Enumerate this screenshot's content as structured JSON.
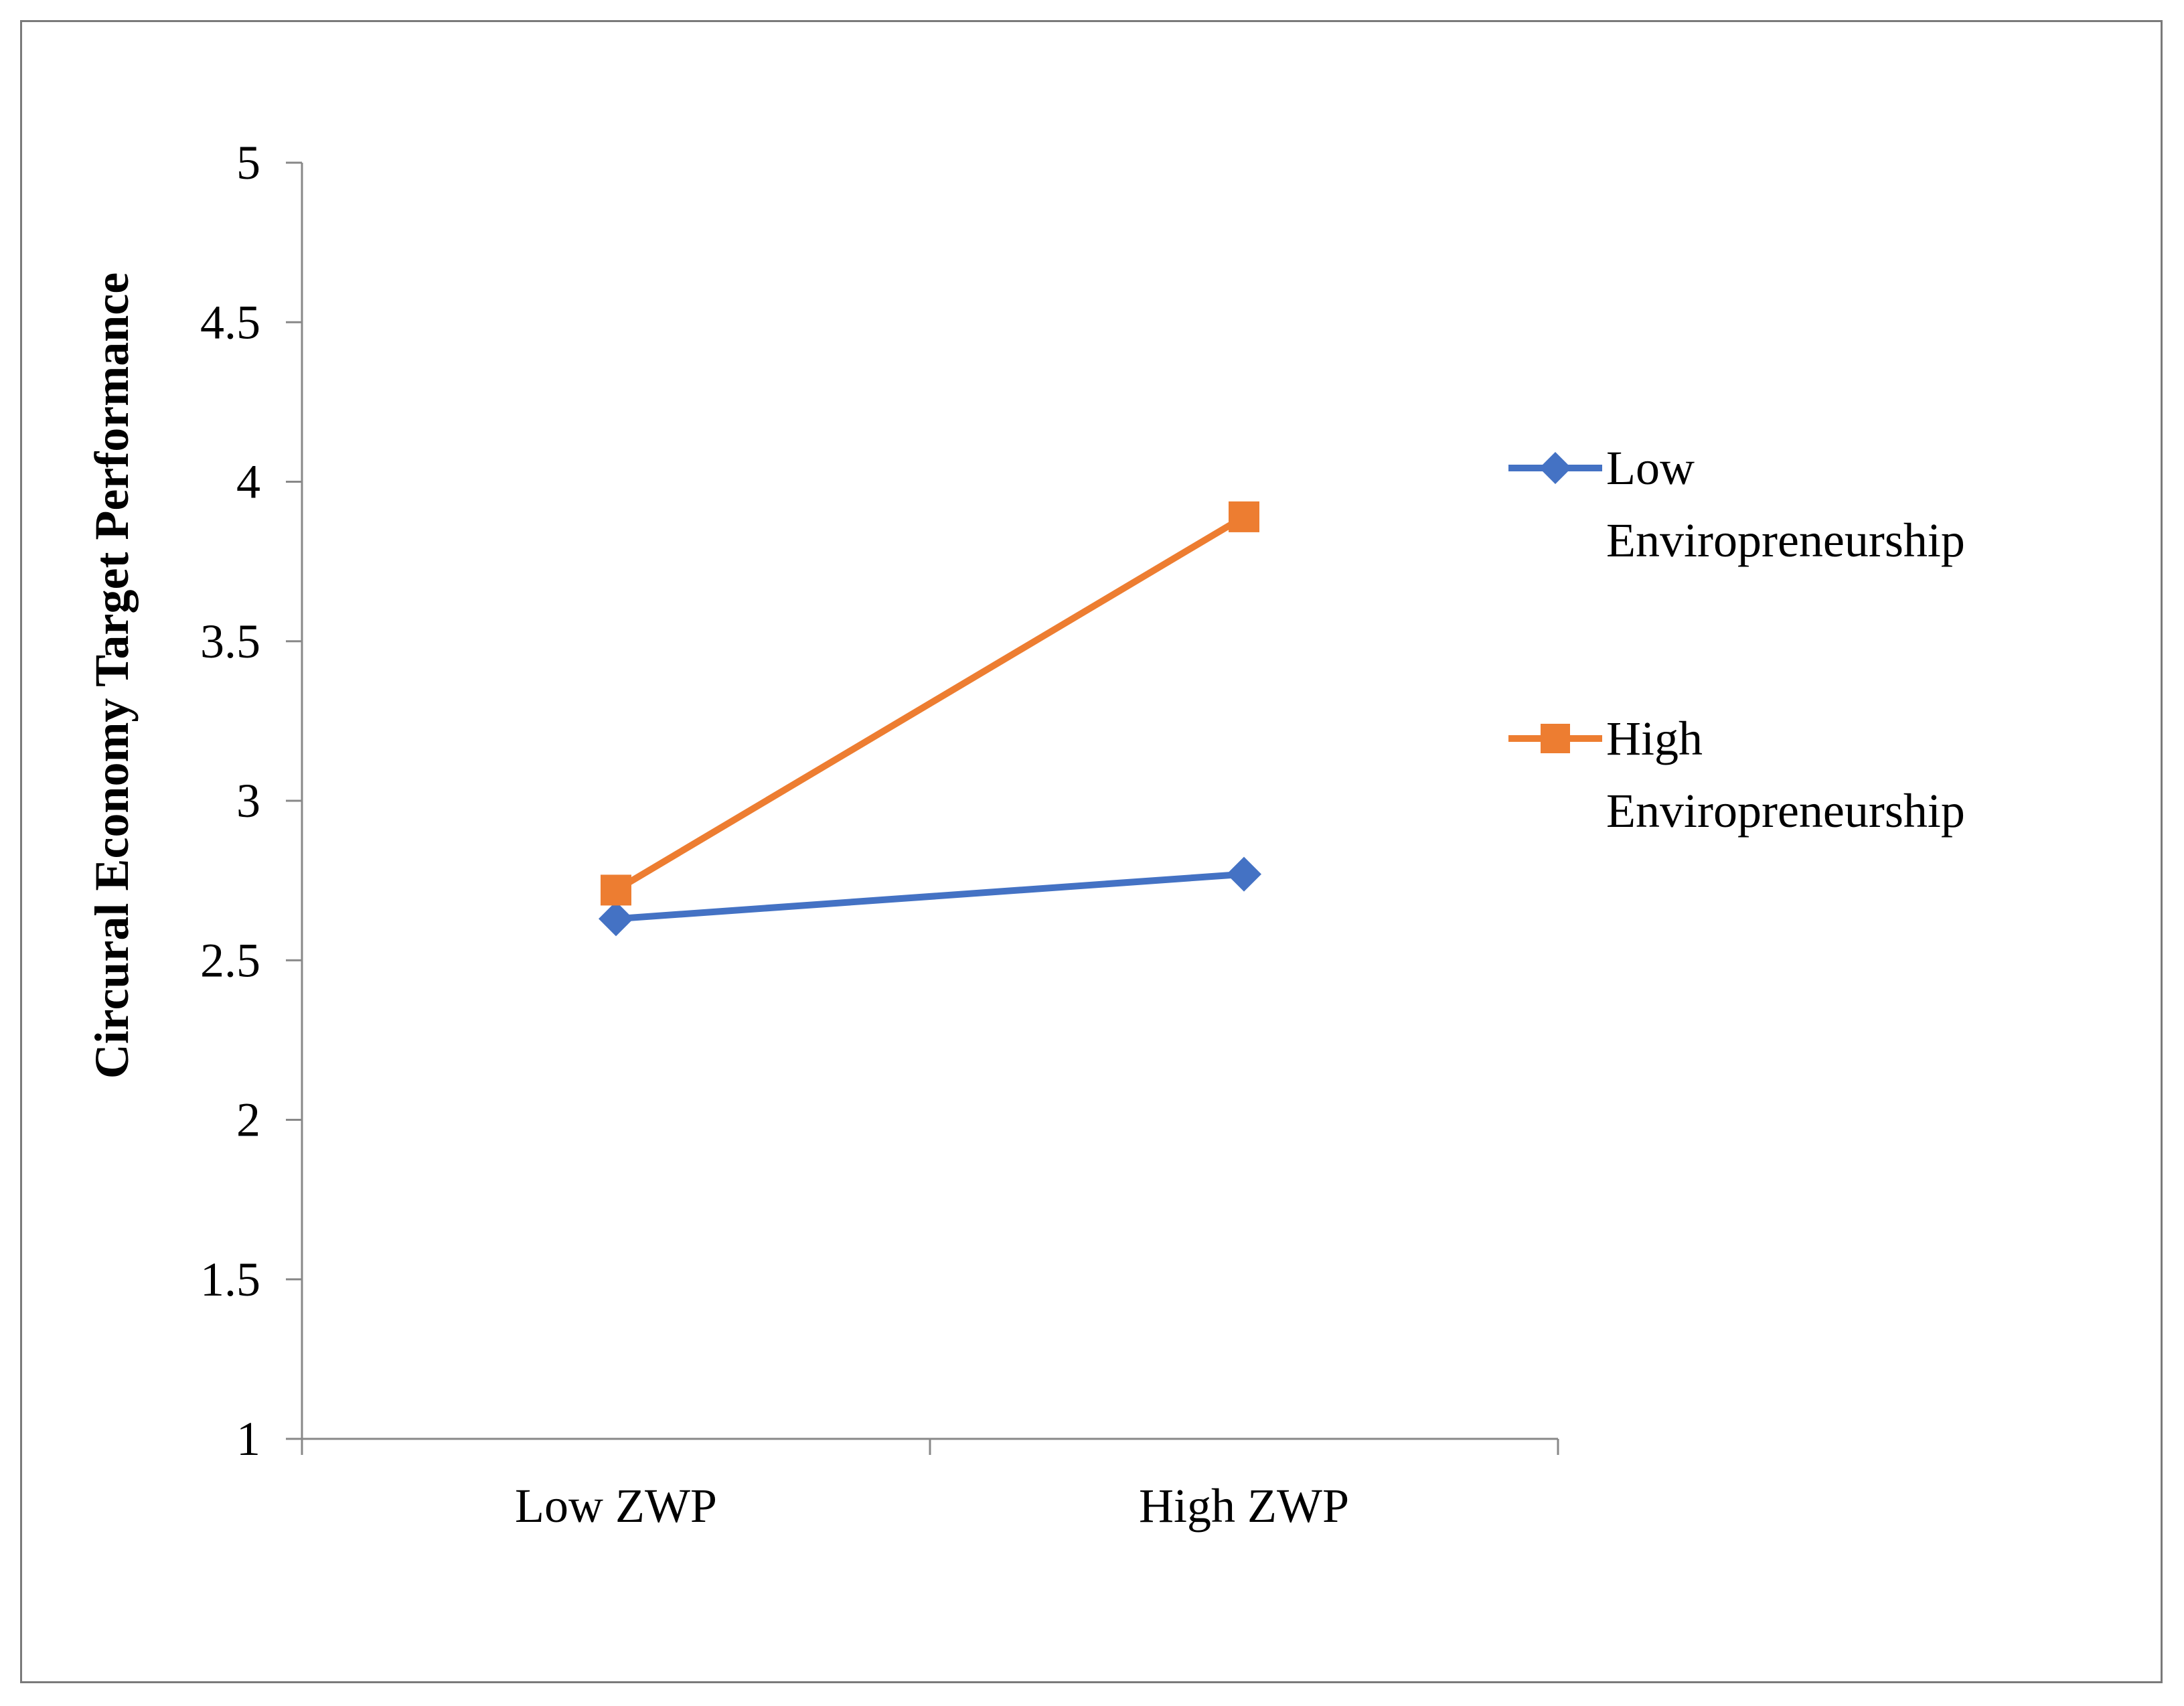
{
  "chart_data": {
    "type": "line",
    "title": "",
    "xlabel": "",
    "ylabel": "Circural Economy Target Performance",
    "categories": [
      "Low ZWP",
      "High ZWP"
    ],
    "ylim": [
      1,
      5
    ],
    "yticks": [
      1,
      1.5,
      2,
      2.5,
      3,
      3.5,
      4,
      4.5,
      5
    ],
    "ytick_labels": [
      "1",
      "1.5",
      "2",
      "2.5",
      "3",
      "3.5",
      "4",
      "4.5",
      "5"
    ],
    "grid": false,
    "legend_position": "right",
    "series": [
      {
        "name": "Low Enviropreneurship",
        "legend_lines": [
          "Low",
          "Enviropreneurship"
        ],
        "values": [
          2.63,
          2.77
        ],
        "color": "#4472C4",
        "marker": "diamond"
      },
      {
        "name": "High Enviropreneurship",
        "legend_lines": [
          "High",
          "Enviropreneurship"
        ],
        "values": [
          2.72,
          3.89
        ],
        "color": "#ED7D31",
        "marker": "square"
      }
    ]
  }
}
